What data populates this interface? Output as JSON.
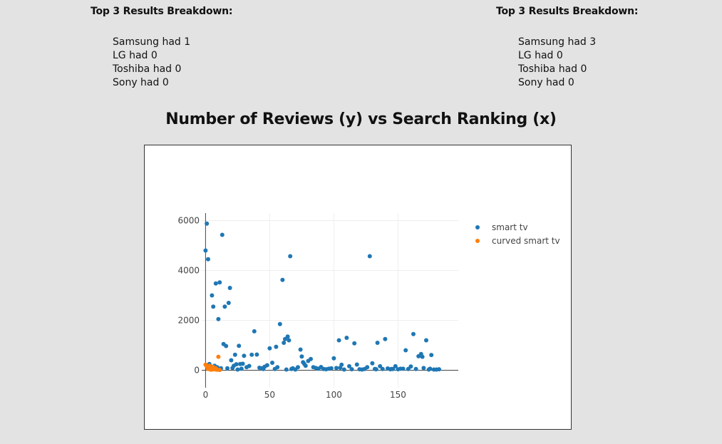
{
  "breakdowns": [
    {
      "title": "Top 3 Results Breakdown:",
      "items": [
        "Samsung had 1",
        "LG had 0",
        "Toshiba had 0",
        "Sony had 0"
      ]
    },
    {
      "title": "Top 3 Results Breakdown:",
      "items": [
        "Samsung had 3",
        "LG had 0",
        "Toshiba had 0",
        "Sony had 0"
      ]
    }
  ],
  "chart_title": "Number of Reviews (y) vs Search Ranking (x)",
  "chart_data": {
    "type": "scatter",
    "title": "Number of Reviews (y) vs Search Ranking (x)",
    "xlabel": "",
    "ylabel": "",
    "xlim": [
      -3,
      197
    ],
    "ylim": [
      -700,
      6300
    ],
    "xticks": [
      0,
      50,
      100,
      150
    ],
    "yticks": [
      0,
      2000,
      4000,
      6000
    ],
    "grid": true,
    "legend_position": "top-right",
    "series": [
      {
        "name": "smart tv",
        "color": "#1f77b4",
        "x": [
          0,
          1,
          2,
          3,
          4,
          5,
          6,
          7,
          8,
          9,
          10,
          11,
          12,
          13,
          14,
          15,
          16,
          17,
          18,
          19,
          20,
          21,
          22,
          23,
          24,
          25,
          26,
          27,
          28,
          29,
          30,
          32,
          34,
          36,
          38,
          40,
          42,
          44,
          45,
          46,
          48,
          50,
          52,
          54,
          55,
          56,
          58,
          60,
          61,
          62,
          63,
          64,
          65,
          66,
          67,
          68,
          70,
          72,
          74,
          75,
          76,
          77,
          78,
          80,
          82,
          84,
          86,
          88,
          90,
          92,
          94,
          96,
          98,
          100,
          102,
          104,
          105,
          106,
          108,
          110,
          112,
          114,
          116,
          118,
          120,
          122,
          124,
          126,
          128,
          130,
          132,
          133,
          134,
          136,
          138,
          140,
          142,
          144,
          145,
          146,
          148,
          150,
          152,
          154,
          156,
          158,
          160,
          162,
          164,
          166,
          168,
          169,
          170,
          172,
          174,
          175,
          176,
          178,
          180,
          182
        ],
        "y": [
          4800,
          5880,
          4450,
          250,
          150,
          3000,
          2550,
          180,
          3480,
          120,
          2050,
          3520,
          80,
          5430,
          1050,
          2550,
          970,
          80,
          2700,
          3300,
          400,
          90,
          180,
          620,
          240,
          30,
          980,
          250,
          60,
          260,
          580,
          120,
          170,
          620,
          1560,
          630,
          100,
          80,
          50,
          140,
          200,
          880,
          300,
          50,
          940,
          120,
          1850,
          3620,
          1100,
          1250,
          30,
          1350,
          1200,
          4570,
          50,
          80,
          30,
          120,
          830,
          550,
          320,
          250,
          180,
          370,
          450,
          120,
          90,
          60,
          130,
          50,
          40,
          60,
          80,
          480,
          90,
          1200,
          100,
          220,
          30,
          1300,
          160,
          40,
          1080,
          230,
          40,
          30,
          50,
          120,
          4570,
          280,
          50,
          40,
          1100,
          160,
          50,
          1250,
          70,
          40,
          50,
          50,
          160,
          40,
          60,
          60,
          800,
          50,
          150,
          1450,
          50,
          560,
          650,
          540,
          90,
          1200,
          30,
          60,
          610,
          30,
          30,
          40
        ]
      },
      {
        "name": "curved smart tv",
        "color": "#ff7f0e",
        "x": [
          0,
          1,
          2,
          3,
          4,
          5,
          6,
          7,
          8,
          9,
          10,
          11,
          2,
          4,
          6,
          8
        ],
        "y": [
          220,
          150,
          90,
          180,
          60,
          30,
          120,
          40,
          80,
          20,
          540,
          10,
          50,
          20,
          130,
          30
        ]
      }
    ]
  }
}
